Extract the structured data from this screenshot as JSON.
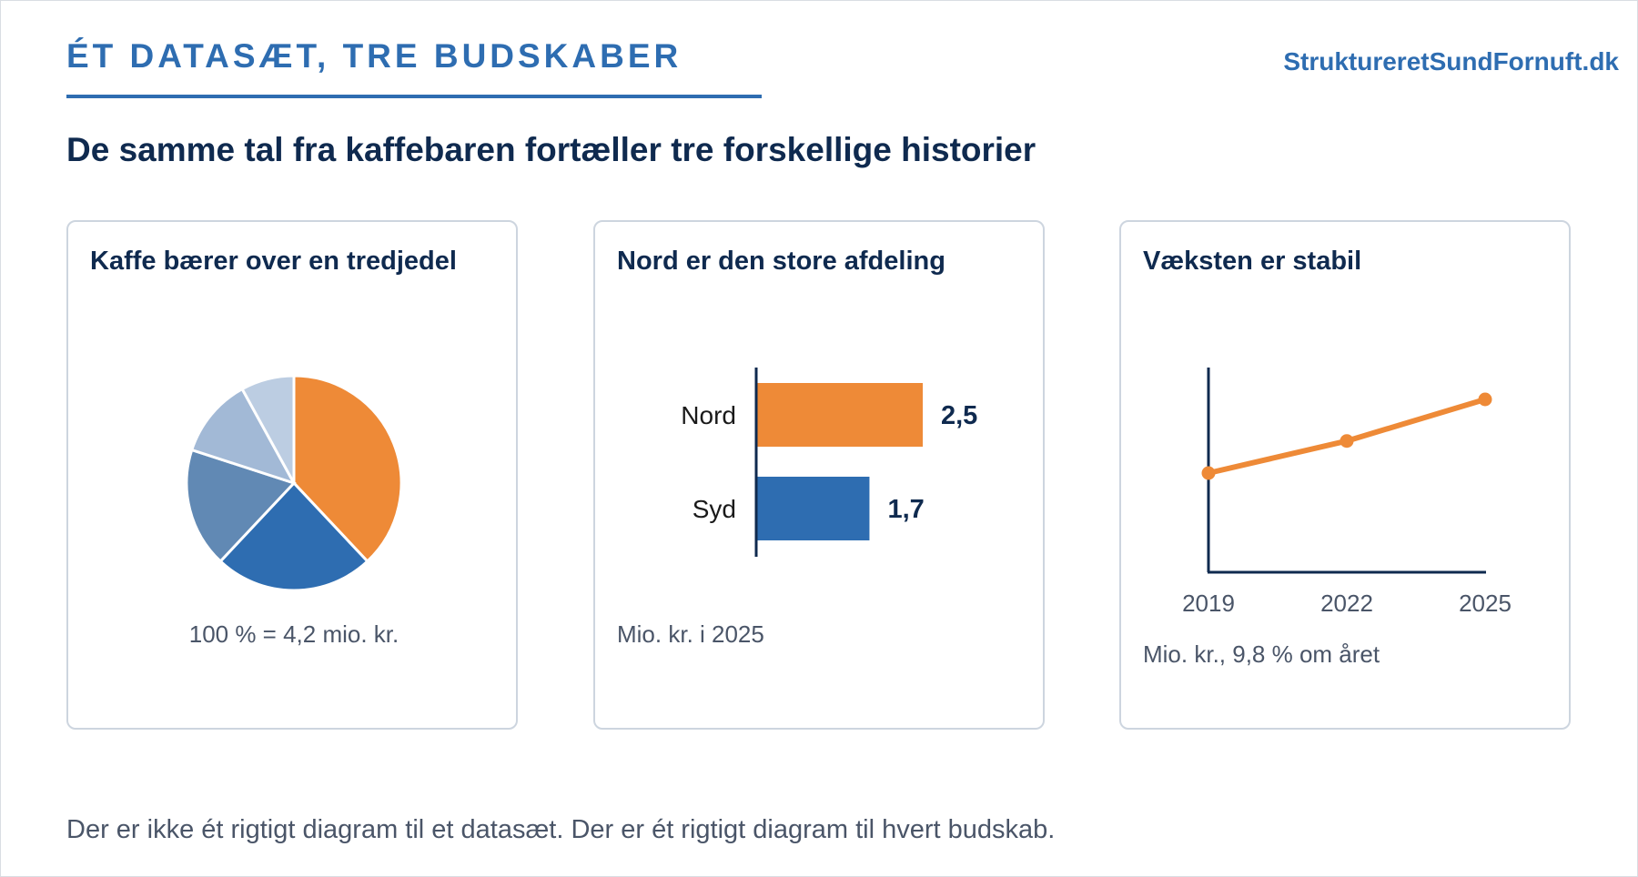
{
  "header": {
    "kicker": "ÉT DATASÆT, TRE BUDSKABER",
    "brand": "StruktureretSundFornuft.dk",
    "headline": "De samme tal fra kaffebaren fortæller tre forskellige historier"
  },
  "footer": {
    "text": "Der er ikke ét rigtigt diagram til et datasæt. Der er ét rigtigt diagram til hvert budskab."
  },
  "colors": {
    "accent": "#ee8a37",
    "blue": "#2e6db1",
    "navy": "#0f2a4f",
    "pie_others": [
      "#6189b4",
      "#a2b9d6",
      "#bccde2"
    ]
  },
  "chart_data": [
    {
      "type": "pie",
      "title": "Kaffe bærer over en tredjedel",
      "note": "100 % = 4,2 mio. kr.",
      "slices": [
        {
          "value": 38,
          "color": "#ee8a37"
        },
        {
          "value": 24,
          "color": "#2e6db1"
        },
        {
          "value": 18,
          "color": "#6189b4"
        },
        {
          "value": 12,
          "color": "#a2b9d6"
        },
        {
          "value": 8,
          "color": "#bccde2"
        }
      ]
    },
    {
      "type": "bar",
      "orientation": "horizontal",
      "title": "Nord er den store afdeling",
      "note": "Mio. kr. i 2025",
      "categories": [
        "Nord",
        "Syd"
      ],
      "values": [
        2.5,
        1.7
      ],
      "value_labels": [
        "2,5",
        "1,7"
      ],
      "colors": [
        "#ee8a37",
        "#2e6db1"
      ],
      "xlim": [
        0,
        3.1
      ]
    },
    {
      "type": "line",
      "title": "Væksten er stabil",
      "note": "Mio. kr., 9,8 % om året",
      "x": [
        "2019",
        "2022",
        "2025"
      ],
      "y": [
        2.41,
        3.19,
        4.2
      ],
      "ylim": [
        0,
        5.3
      ],
      "color": "#ee8a37"
    }
  ]
}
